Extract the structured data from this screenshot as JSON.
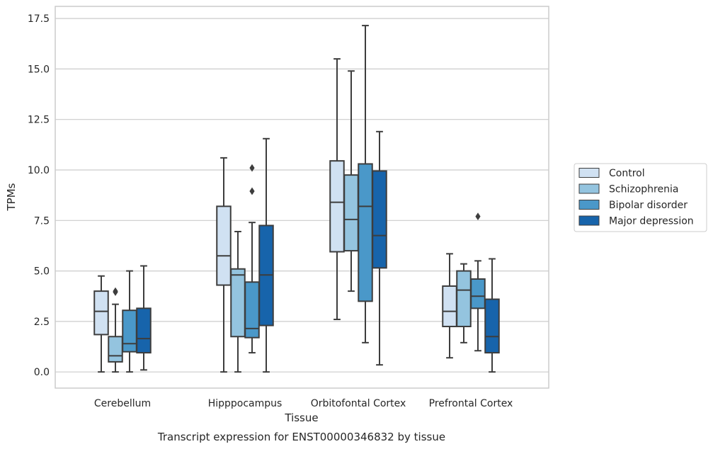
{
  "chart_data": {
    "type": "box",
    "title": "",
    "caption": "Transcript expression for ENST00000346832 by tissue",
    "xlabel": "Tissue",
    "ylabel": "TPMs",
    "ylim": [
      -0.8,
      18.1
    ],
    "yticks": [
      "0.0",
      "2.5",
      "5.0",
      "7.5",
      "10.0",
      "12.5",
      "15.0",
      "17.5"
    ],
    "ytick_values": [
      0,
      2.5,
      5,
      7.5,
      10,
      12.5,
      15,
      17.5
    ],
    "grid": "horizontal",
    "legend_position": "right",
    "categories": [
      "Cerebellum",
      "Hipppocampus",
      "Orbitofontal Cortex",
      "Prefrontal Cortex"
    ],
    "series": [
      {
        "name": "Control",
        "color": "#d0e1f2",
        "boxes": [
          {
            "whislo": 0.0,
            "q1": 1.85,
            "med": 3.0,
            "q3": 4.0,
            "whishi": 4.75,
            "fliers": []
          },
          {
            "whislo": 0.0,
            "q1": 4.3,
            "med": 5.75,
            "q3": 8.2,
            "whishi": 10.6,
            "fliers": []
          },
          {
            "whislo": 2.6,
            "q1": 5.95,
            "med": 8.4,
            "q3": 10.45,
            "whishi": 15.5,
            "fliers": []
          },
          {
            "whislo": 0.7,
            "q1": 2.25,
            "med": 3.0,
            "q3": 4.25,
            "whishi": 5.85,
            "fliers": []
          }
        ]
      },
      {
        "name": "Schizophrenia",
        "color": "#94c4df",
        "boxes": [
          {
            "whislo": 0.0,
            "q1": 0.5,
            "med": 0.8,
            "q3": 1.75,
            "whishi": 3.35,
            "fliers": [
              3.95,
              4.0
            ]
          },
          {
            "whislo": 0.0,
            "q1": 1.75,
            "med": 4.8,
            "q3": 5.1,
            "whishi": 6.95,
            "fliers": []
          },
          {
            "whislo": 4.0,
            "q1": 6.0,
            "med": 7.55,
            "q3": 9.75,
            "whishi": 14.9,
            "fliers": []
          },
          {
            "whislo": 1.45,
            "q1": 2.25,
            "med": 4.05,
            "q3": 5.0,
            "whishi": 5.35,
            "fliers": []
          }
        ]
      },
      {
        "name": "Bipolar disorder",
        "color": "#4a98c9",
        "boxes": [
          {
            "whislo": 0.0,
            "q1": 1.0,
            "med": 1.4,
            "q3": 3.05,
            "whishi": 5.0,
            "fliers": []
          },
          {
            "whislo": 0.95,
            "q1": 1.7,
            "med": 2.15,
            "q3": 4.45,
            "whishi": 7.4,
            "fliers": [
              8.95,
              10.1
            ]
          },
          {
            "whislo": 1.45,
            "q1": 3.5,
            "med": 8.2,
            "q3": 10.3,
            "whishi": 17.15,
            "fliers": []
          },
          {
            "whislo": 1.05,
            "q1": 3.15,
            "med": 3.75,
            "q3": 4.6,
            "whishi": 5.5,
            "fliers": [
              7.7
            ]
          }
        ]
      },
      {
        "name": "Major depression",
        "color": "#1764ab",
        "boxes": [
          {
            "whislo": 0.1,
            "q1": 0.95,
            "med": 1.65,
            "q3": 3.15,
            "whishi": 5.25,
            "fliers": []
          },
          {
            "whislo": 0.0,
            "q1": 2.3,
            "med": 4.8,
            "q3": 7.25,
            "whishi": 11.55,
            "fliers": []
          },
          {
            "whislo": 0.35,
            "q1": 5.15,
            "med": 6.75,
            "q3": 9.95,
            "whishi": 11.9,
            "fliers": []
          },
          {
            "whislo": 0.0,
            "q1": 0.95,
            "med": 1.75,
            "q3": 3.6,
            "whishi": 5.6,
            "fliers": []
          }
        ]
      }
    ]
  },
  "colors": {
    "grid": "#cccccc",
    "frame": "#cccccc",
    "box_edge": "#3d3d3d",
    "text": "#262626"
  }
}
